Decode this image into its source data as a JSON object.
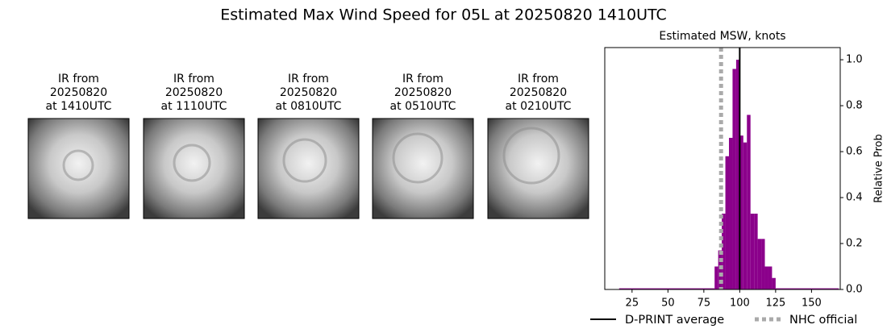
{
  "title": "Estimated Max Wind Speed for 05L at 20250820 1410UTC",
  "ir_panels": [
    {
      "lines": [
        "IR from",
        "20250820",
        "at 1410UTC"
      ]
    },
    {
      "lines": [
        "IR from",
        "20250820",
        "at 1110UTC"
      ]
    },
    {
      "lines": [
        "IR from",
        "20250820",
        "at 0810UTC"
      ]
    },
    {
      "lines": [
        "IR from",
        "20250820",
        "at 0510UTC"
      ]
    },
    {
      "lines": [
        "IR from",
        "20250820",
        "at 0210UTC"
      ]
    }
  ],
  "chart_data": {
    "type": "histogram",
    "title": "Estimated MSW, knots",
    "bins": [
      16,
      82.5,
      85,
      87.5,
      90,
      92.5,
      95,
      97.5,
      100,
      102.5,
      105,
      107.5,
      110,
      112.5,
      115,
      117.5,
      120,
      122.5,
      125,
      169
    ],
    "values": [
      0.005,
      0.1,
      0.17,
      0.33,
      0.58,
      0.66,
      0.96,
      1.0,
      0.67,
      0.64,
      0.76,
      0.33,
      0.33,
      0.22,
      0.22,
      0.1,
      0.1,
      0.05,
      0.005
    ],
    "color": "#8b008b",
    "xlim": [
      6,
      170
    ],
    "xticks": [
      25,
      50,
      75,
      100,
      125,
      150
    ],
    "ylim": [
      0,
      1.053
    ],
    "yticks": [
      {
        "value": 0,
        "label": "0.0"
      },
      {
        "value": 0.2,
        "label": "0.2"
      },
      {
        "value": 0.4,
        "label": "0.4"
      },
      {
        "value": 0.6,
        "label": "0.6"
      },
      {
        "value": 0.8,
        "label": "0.8"
      },
      {
        "value": 1,
        "label": "1.0"
      }
    ],
    "y_label": "Relative Prob",
    "y_axis_side": "right",
    "reference_lines": [
      {
        "name": "D-PRINT average",
        "value": 100,
        "color": "#000000",
        "style": "solid"
      },
      {
        "name": "NHC official",
        "value": 87,
        "color": "#aaaaaa",
        "style": "dotted"
      }
    ],
    "legend": "bottom"
  }
}
